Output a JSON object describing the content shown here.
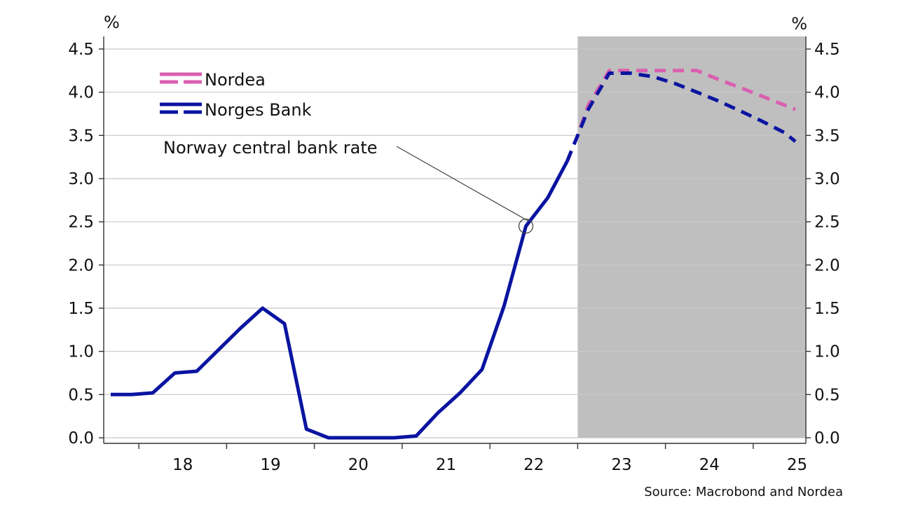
{
  "chart_data": {
    "type": "line",
    "title": "",
    "xlabel": "",
    "ylabel": "",
    "y_unit_left": "%",
    "y_unit_right": "%",
    "ylim": [
      0,
      4.5
    ],
    "y_ticks": [
      "0.0",
      "0.5",
      "1.0",
      "1.5",
      "2.0",
      "2.5",
      "3.0",
      "3.5",
      "4.0",
      "4.5"
    ],
    "xlim": [
      2017.6,
      2025.6
    ],
    "x_tick_labels": [
      "18",
      "19",
      "20",
      "21",
      "22",
      "23",
      "24",
      "25"
    ],
    "grid": true,
    "legend_position": "top-left",
    "forecast_shading": {
      "from": 2023.0,
      "to": 2025.6,
      "color": "#bfbfbf"
    },
    "annotation": {
      "text": "Norway central bank rate",
      "x": 2022.41,
      "y": 2.45
    },
    "series": [
      {
        "name": "Nordea",
        "color": "#d95fb0",
        "style": "dashed",
        "points": [
          [
            2022.88,
            3.2
          ],
          [
            2023.0,
            3.5
          ],
          [
            2023.12,
            3.85
          ],
          [
            2023.36,
            4.25
          ],
          [
            2023.6,
            4.25
          ],
          [
            2023.86,
            4.25
          ],
          [
            2024.11,
            4.25
          ],
          [
            2024.36,
            4.25
          ],
          [
            2024.6,
            4.15
          ],
          [
            2024.86,
            4.05
          ],
          [
            2025.11,
            3.95
          ],
          [
            2025.36,
            3.85
          ],
          [
            2025.48,
            3.8
          ]
        ]
      },
      {
        "name": "Norges Bank",
        "color": "#0a14a0",
        "style": "solid",
        "points": [
          [
            2017.68,
            0.5
          ],
          [
            2017.92,
            0.5
          ],
          [
            2018.16,
            0.52
          ],
          [
            2018.41,
            0.75
          ],
          [
            2018.66,
            0.77
          ],
          [
            2018.91,
            1.02
          ],
          [
            2019.16,
            1.27
          ],
          [
            2019.41,
            1.5
          ],
          [
            2019.66,
            1.32
          ],
          [
            2019.91,
            0.1
          ],
          [
            2020.16,
            0.0
          ],
          [
            2020.41,
            0.0
          ],
          [
            2020.66,
            0.0
          ],
          [
            2020.91,
            0.0
          ],
          [
            2021.16,
            0.02
          ],
          [
            2021.41,
            0.29
          ],
          [
            2021.66,
            0.52
          ],
          [
            2021.91,
            0.79
          ],
          [
            2022.16,
            1.52
          ],
          [
            2022.41,
            2.45
          ],
          [
            2022.66,
            2.78
          ],
          [
            2022.88,
            3.2
          ]
        ]
      },
      {
        "name": "Norges Bank forecast",
        "color": "#0a14a0",
        "style": "dashed",
        "points": [
          [
            2022.88,
            3.2
          ],
          [
            2023.0,
            3.5
          ],
          [
            2023.12,
            3.8
          ],
          [
            2023.36,
            4.22
          ],
          [
            2023.6,
            4.22
          ],
          [
            2023.86,
            4.18
          ],
          [
            2024.11,
            4.1
          ],
          [
            2024.36,
            4.0
          ],
          [
            2024.6,
            3.9
          ],
          [
            2024.86,
            3.78
          ],
          [
            2025.11,
            3.66
          ],
          [
            2025.36,
            3.53
          ],
          [
            2025.48,
            3.43
          ]
        ]
      }
    ],
    "legend": [
      {
        "label": "Nordea",
        "color": "#d95fb0"
      },
      {
        "label": "Norges Bank",
        "color": "#0a14a0"
      }
    ],
    "source": "Source: Macrobond and Nordea"
  }
}
